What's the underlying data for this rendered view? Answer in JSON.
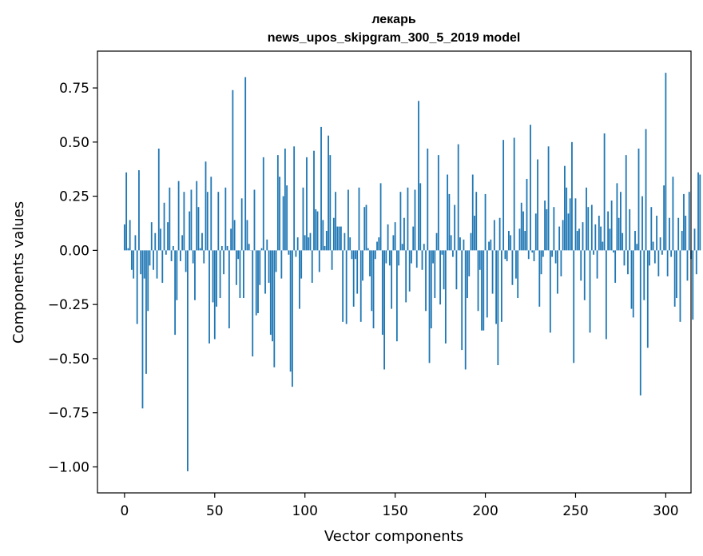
{
  "chart_data": {
    "type": "bar",
    "title_line1": "лекарь",
    "title_line2": "news_upos_skipgram_300_5_2019 model",
    "xlabel": "Vector components",
    "ylabel": "Components values",
    "xlim": [
      -15,
      314
    ],
    "ylim": [
      -1.12,
      0.92
    ],
    "x_ticks": [
      0,
      50,
      100,
      150,
      200,
      250,
      300
    ],
    "x_tick_labels": [
      "0",
      "50",
      "100",
      "150",
      "200",
      "250",
      "300"
    ],
    "y_ticks": [
      0.75,
      0.5,
      0.25,
      0.0,
      -0.25,
      -0.5,
      -0.75,
      -1.0
    ],
    "y_tick_labels": [
      "0.75",
      "0.50",
      "0.25",
      "0.00",
      "−0.25",
      "−0.50",
      "−0.75",
      "−1.00"
    ],
    "bar_color": "#1f77b4",
    "values": [
      0.12,
      0.36,
      0.01,
      0.14,
      -0.09,
      -0.13,
      0.07,
      -0.34,
      0.37,
      -0.11,
      -0.73,
      -0.13,
      -0.57,
      -0.28,
      -0.07,
      0.13,
      -0.09,
      0.08,
      -0.13,
      0.47,
      0.1,
      -0.15,
      0.22,
      -0.02,
      0.13,
      0.29,
      -0.05,
      0.02,
      -0.39,
      -0.23,
      0.32,
      -0.05,
      0.07,
      0.27,
      -0.1,
      -1.02,
      0.18,
      0.28,
      -0.06,
      -0.23,
      0.32,
      0.2,
      0.01,
      0.08,
      -0.06,
      0.41,
      0.27,
      -0.43,
      0.34,
      -0.24,
      -0.41,
      -0.26,
      0.27,
      -0.22,
      0.02,
      -0.11,
      0.29,
      0.02,
      -0.36,
      0.1,
      0.74,
      0.14,
      -0.16,
      -0.04,
      -0.22,
      0.24,
      -0.22,
      0.8,
      0.14,
      0.03,
      0.0,
      -0.49,
      0.28,
      -0.3,
      -0.29,
      -0.16,
      0.01,
      0.43,
      -0.2,
      0.05,
      -0.15,
      -0.39,
      -0.42,
      -0.54,
      -0.1,
      0.44,
      0.34,
      -0.13,
      0.25,
      0.47,
      0.3,
      -0.02,
      -0.56,
      -0.63,
      0.48,
      -0.03,
      0.06,
      -0.27,
      -0.13,
      0.29,
      0.07,
      0.43,
      0.06,
      0.08,
      -0.15,
      0.46,
      0.19,
      0.18,
      -0.1,
      0.57,
      0.14,
      0.02,
      0.09,
      0.53,
      0.44,
      -0.09,
      0.15,
      0.27,
      0.11,
      0.11,
      0.11,
      -0.33,
      0.08,
      -0.34,
      0.28,
      0.06,
      -0.04,
      -0.26,
      -0.04,
      -0.2,
      0.29,
      -0.33,
      -0.14,
      0.2,
      0.21,
      0.01,
      -0.12,
      -0.28,
      -0.36,
      -0.04,
      0.04,
      0.06,
      0.31,
      -0.39,
      -0.55,
      -0.06,
      0.12,
      -0.07,
      -0.27,
      0.07,
      0.13,
      -0.42,
      -0.07,
      0.27,
      0.03,
      0.15,
      -0.24,
      0.29,
      -0.19,
      -0.06,
      0.11,
      0.28,
      -0.08,
      0.69,
      0.31,
      -0.09,
      0.03,
      -0.28,
      0.47,
      -0.52,
      -0.36,
      -0.06,
      -0.22,
      0.08,
      0.44,
      -0.25,
      -0.02,
      -0.18,
      -0.43,
      0.35,
      0.26,
      0.07,
      -0.03,
      0.21,
      -0.18,
      0.49,
      0.06,
      -0.46,
      0.05,
      -0.55,
      -0.22,
      -0.12,
      0.08,
      0.35,
      0.16,
      0.27,
      -0.28,
      -0.09,
      -0.37,
      -0.37,
      0.26,
      -0.31,
      0.04,
      0.05,
      -0.2,
      0.14,
      -0.34,
      -0.53,
      0.15,
      -0.33,
      0.51,
      -0.04,
      -0.05,
      0.09,
      0.07,
      -0.16,
      0.52,
      -0.13,
      -0.22,
      0.1,
      0.22,
      0.18,
      0.09,
      0.33,
      -0.04,
      0.58,
      -0.01,
      -0.05,
      0.17,
      0.42,
      -0.26,
      -0.11,
      -0.03,
      0.23,
      0.19,
      0.48,
      -0.38,
      -0.03,
      0.2,
      -0.06,
      -0.2,
      0.11,
      -0.12,
      0.14,
      0.39,
      0.29,
      0.17,
      0.24,
      0.5,
      -0.52,
      0.24,
      0.09,
      0.1,
      -0.14,
      0.13,
      -0.23,
      0.29,
      0.2,
      -0.38,
      0.21,
      -0.02,
      0.12,
      -0.13,
      0.16,
      0.11,
      0.04,
      0.54,
      -0.41,
      0.18,
      0.1,
      0.23,
      -0.01,
      -0.15,
      0.31,
      0.15,
      0.27,
      0.08,
      -0.07,
      0.44,
      -0.11,
      0.19,
      -0.27,
      -0.31,
      0.09,
      0.03,
      0.47,
      -0.67,
      0.25,
      -0.23,
      0.56,
      -0.45,
      -0.07,
      0.2,
      0.04,
      -0.06,
      0.16,
      -0.12,
      0.06,
      -0.02,
      0.3,
      0.82,
      -0.12,
      0.15,
      -0.03,
      0.34,
      -0.26,
      -0.22,
      0.15,
      -0.33,
      0.09,
      0.26,
      0.16,
      -0.14,
      0.27,
      -0.04,
      -0.32,
      0.1,
      -0.11,
      0.36,
      0.35
    ]
  }
}
